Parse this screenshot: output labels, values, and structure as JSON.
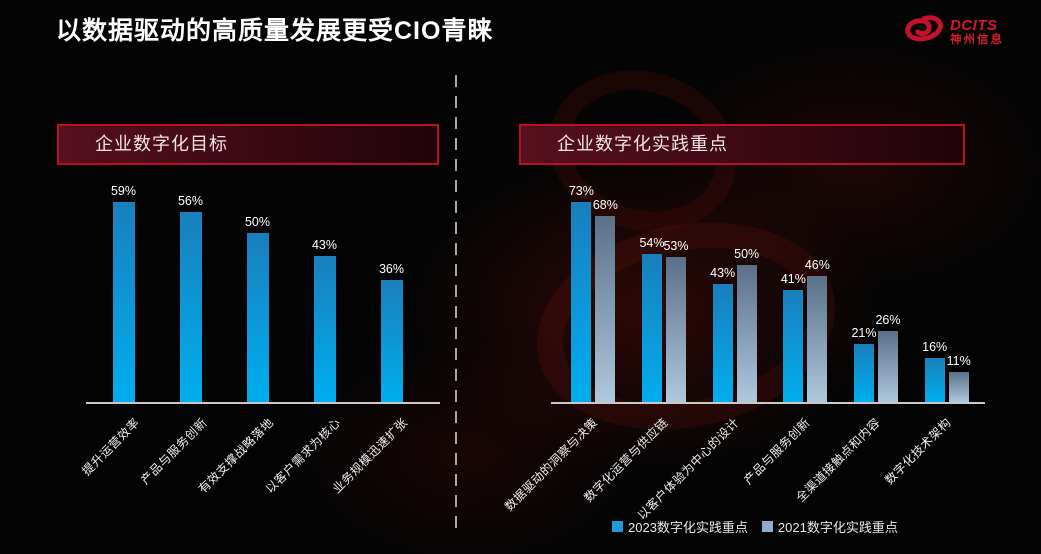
{
  "title": "以数据驱动的高质量发展更受CIO青睐",
  "logo": {
    "brand": "DCITS",
    "company": "神州信息",
    "color": "#c8102e"
  },
  "chart_data": [
    {
      "type": "bar",
      "title": "企业数字化目标",
      "categories": [
        "提升运营效率",
        "产品与服务创新",
        "有效支撑战略落地",
        "以客户需求为核心",
        "业务规模迅速扩张"
      ],
      "series": [
        {
          "name": "企业数字化目标",
          "values": [
            59,
            56,
            50,
            43,
            36
          ],
          "color_top": "#1a7fbc",
          "color_bottom": "#00aeef"
        }
      ],
      "unit": "%",
      "value_labels": "shown above bars",
      "ylim": [
        0,
        73
      ],
      "grid": "off",
      "x_label_rotation": -45
    },
    {
      "type": "bar",
      "title": "企业数字化实践重点",
      "categories": [
        "数据驱动的洞察与决策",
        "数字化运营与供应链",
        "以客户体验为中心的设计",
        "产品与服务创新",
        "全渠道接触点和内容",
        "数字化技术架构"
      ],
      "series": [
        {
          "name": "2023数字化实践重点",
          "values": [
            73,
            54,
            43,
            41,
            21,
            16
          ],
          "color_top": "#1a7fbc",
          "color_bottom": "#00aeef"
        },
        {
          "name": "2021数字化实践重点",
          "values": [
            68,
            53,
            50,
            46,
            26,
            11
          ],
          "color_top": "#5a7089",
          "color_bottom": "#aec8de"
        }
      ],
      "unit": "%",
      "value_labels": "shown above bars",
      "ylim": [
        0,
        73
      ],
      "grid": "off",
      "x_label_rotation": -45,
      "legend_position": "bottom"
    }
  ],
  "legend": [
    {
      "label": "2023数字化实践重点",
      "color": "#1f9bd7"
    },
    {
      "label": "2021数字化实践重点",
      "color": "#8fadc9"
    }
  ],
  "colors": {
    "background": "#040404",
    "accent_red": "#bb0f27",
    "header_fill": "#57101f",
    "bar_2023": "#00aeef",
    "bar_2021": "#aec8de",
    "axis_line": "#c9c9c9",
    "divider": "#a9a6a6"
  }
}
